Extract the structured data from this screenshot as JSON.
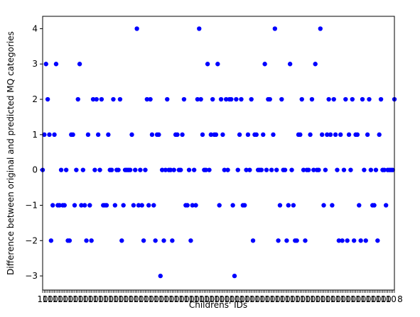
{
  "chart_data": {
    "type": "scatter",
    "title": "",
    "xlabel": "Childrens' IDs",
    "ylabel": "Difference between original and predicted MQ categories",
    "ylim": [
      -3.4,
      4.35
    ],
    "y_ticks": [
      -3,
      -2,
      -1,
      0,
      1,
      2,
      3,
      4
    ],
    "x_tick_label_text": "10",
    "x_tick_label_end": "8",
    "grid": false,
    "legend": "none",
    "point_color": "#0000ff",
    "series": [
      {
        "values": [
          0,
          1,
          3,
          2,
          1,
          -2,
          -1,
          1,
          3,
          -1,
          -1,
          0,
          -1,
          -1,
          0,
          -2,
          -2,
          1,
          1,
          -1,
          0,
          2,
          3,
          -1,
          0,
          -1,
          -2,
          1,
          -1,
          -2,
          2,
          0,
          2,
          1,
          0,
          2,
          -1,
          -1,
          -1,
          1,
          0,
          0,
          2,
          -1,
          0,
          0,
          2,
          -2,
          -1,
          0,
          0,
          0,
          0,
          1,
          -1,
          0,
          4,
          -1,
          0,
          -1,
          -2,
          0,
          2,
          -1,
          2,
          1,
          -1,
          -2,
          1,
          1,
          -3,
          0,
          -2,
          0,
          2,
          0,
          0,
          -2,
          0,
          1,
          1,
          0,
          0,
          1,
          2,
          -1,
          -1,
          0,
          -2,
          -1,
          0,
          -1,
          2,
          4,
          2,
          1,
          0,
          0,
          3,
          0,
          1,
          2,
          1,
          1,
          3,
          -1,
          2,
          1,
          0,
          2,
          0,
          2,
          2,
          -1,
          -3,
          2,
          0,
          1,
          2,
          -1,
          -1,
          0,
          1,
          0,
          2,
          -2,
          1,
          1,
          0,
          0,
          0,
          1,
          3,
          0,
          2,
          2,
          0,
          1,
          4,
          0,
          -2,
          -1,
          2,
          0,
          0,
          -2,
          -1,
          3,
          0,
          -1,
          -2,
          -2,
          1,
          1,
          2,
          0,
          -2,
          0,
          0,
          1,
          2,
          0,
          3,
          0,
          0,
          4,
          1,
          -1,
          0,
          1,
          2,
          1,
          -1,
          2,
          1,
          0,
          -2,
          1,
          -2,
          0,
          2,
          -2,
          1,
          0,
          2,
          -2,
          1,
          1,
          -1,
          -2,
          2,
          0,
          -2,
          1,
          2,
          0,
          -1,
          -1,
          0,
          -2,
          1,
          2,
          0,
          0,
          -1,
          0,
          0,
          0,
          0,
          2
        ]
      }
    ]
  }
}
